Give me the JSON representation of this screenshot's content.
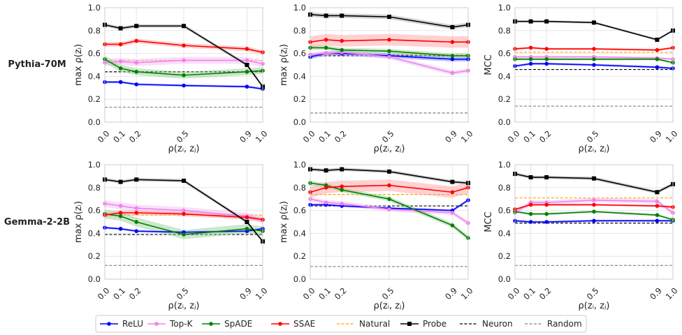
{
  "figure": {
    "row_labels": [
      "Pythia-70M",
      "Gemma-2-2B"
    ],
    "xlabel": "ρ(zᵢ, zⱼ)"
  },
  "legend": [
    {
      "name": "ReLU",
      "color": "#0000ff",
      "style": "solid-dot"
    },
    {
      "name": "Top-K",
      "color": "#ee82ee",
      "style": "solid-dot"
    },
    {
      "name": "SpADE",
      "color": "#008000",
      "style": "solid-dot"
    },
    {
      "name": "SSAE",
      "color": "#ff0000",
      "style": "solid-dot"
    },
    {
      "name": "Natural",
      "color": "#ffa500",
      "style": "dashed"
    },
    {
      "name": "Probe",
      "color": "#000000",
      "style": "solid-square"
    },
    {
      "name": "Neuron",
      "color": "#000000",
      "style": "dashed"
    },
    {
      "name": "Random",
      "color": "#808080",
      "style": "dashed"
    }
  ],
  "chart_data": [
    {
      "type": "line",
      "model": "Pythia-70M",
      "ylabel": "max ρ(zᵢ)",
      "x": [
        0.0,
        0.1,
        0.2,
        0.5,
        0.9,
        1.0
      ],
      "ylim": [
        0.0,
        1.0
      ],
      "xticks": [
        "0.0",
        "0.1",
        "0.2",
        "0.5",
        "0.9",
        "1.0"
      ],
      "yticks": [
        "0.0",
        "0.2",
        "0.4",
        "0.6",
        "0.8",
        "1.0"
      ],
      "series": [
        {
          "name": "ReLU",
          "values": [
            0.35,
            0.35,
            0.33,
            0.32,
            0.31,
            0.29
          ],
          "band": 0.01
        },
        {
          "name": "Top-K",
          "values": [
            0.52,
            0.53,
            0.52,
            0.54,
            0.54,
            0.51
          ],
          "band": 0.03
        },
        {
          "name": "SpADE",
          "values": [
            0.55,
            0.47,
            0.44,
            0.41,
            0.44,
            0.45
          ],
          "band": 0.03
        },
        {
          "name": "SSAE",
          "values": [
            0.68,
            0.68,
            0.71,
            0.67,
            0.64,
            0.61
          ],
          "band": 0.02
        },
        {
          "name": "Probe",
          "values": [
            0.85,
            0.82,
            0.84,
            0.84,
            0.5,
            0.31
          ],
          "band": 0.015
        }
      ],
      "hlines": [
        {
          "name": "Natural",
          "value": 0.54
        },
        {
          "name": "Neuron",
          "value": 0.44
        },
        {
          "name": "Random",
          "value": 0.13
        }
      ]
    },
    {
      "type": "line",
      "model": "Pythia-70M",
      "ylabel": "max ρ(zⱼ)",
      "x": [
        0.0,
        0.1,
        0.2,
        0.5,
        0.9,
        1.0
      ],
      "ylim": [
        0.0,
        1.0
      ],
      "xticks": [
        "0.0",
        "0.1",
        "0.2",
        "0.5",
        "0.9",
        "1.0"
      ],
      "yticks": [
        "0.0",
        "0.2",
        "0.4",
        "0.6",
        "0.8",
        "1.0"
      ],
      "series": [
        {
          "name": "ReLU",
          "values": [
            0.57,
            0.6,
            0.6,
            0.58,
            0.55,
            0.55
          ],
          "band": 0.02
        },
        {
          "name": "Top-K",
          "values": [
            0.59,
            0.6,
            0.61,
            0.57,
            0.43,
            0.45
          ],
          "band": 0.02
        },
        {
          "name": "SpADE",
          "values": [
            0.65,
            0.65,
            0.63,
            0.62,
            0.58,
            0.58
          ],
          "band": 0.02
        },
        {
          "name": "SSAE",
          "values": [
            0.7,
            0.72,
            0.71,
            0.72,
            0.7,
            0.7
          ],
          "band": 0.05
        },
        {
          "name": "Probe",
          "values": [
            0.94,
            0.93,
            0.93,
            0.92,
            0.83,
            0.85
          ],
          "band": 0.02
        }
      ],
      "hlines": [
        {
          "name": "Natural",
          "value": 0.59
        },
        {
          "name": "Neuron",
          "value": 0.58
        },
        {
          "name": "Random",
          "value": 0.08
        }
      ]
    },
    {
      "type": "line",
      "model": "Pythia-70M",
      "ylabel": "MCC",
      "x": [
        0.0,
        0.1,
        0.2,
        0.5,
        0.9,
        1.0
      ],
      "ylim": [
        0.0,
        1.0
      ],
      "xticks": [
        "0.0",
        "0.1",
        "0.2",
        "0.5",
        "0.9",
        "1.0"
      ],
      "yticks": [
        "0.0",
        "0.2",
        "0.4",
        "0.6",
        "0.8",
        "1.0"
      ],
      "series": [
        {
          "name": "ReLU",
          "values": [
            0.49,
            0.51,
            0.51,
            0.5,
            0.48,
            0.47
          ],
          "band": 0.01
        },
        {
          "name": "Top-K",
          "values": [
            0.57,
            0.57,
            0.57,
            0.57,
            0.56,
            0.55
          ],
          "band": 0.01
        },
        {
          "name": "SpADE",
          "values": [
            0.55,
            0.55,
            0.55,
            0.55,
            0.55,
            0.52
          ],
          "band": 0.01
        },
        {
          "name": "SSAE",
          "values": [
            0.64,
            0.65,
            0.64,
            0.64,
            0.63,
            0.65
          ],
          "band": 0.01
        },
        {
          "name": "Probe",
          "values": [
            0.88,
            0.88,
            0.88,
            0.87,
            0.72,
            0.8
          ],
          "band": 0.01
        }
      ],
      "hlines": [
        {
          "name": "Natural",
          "value": 0.61
        },
        {
          "name": "Neuron",
          "value": 0.46
        },
        {
          "name": "Random",
          "value": 0.14
        }
      ]
    },
    {
      "type": "line",
      "model": "Gemma-2-2B",
      "ylabel": "max ρ(zᵢ)",
      "x": [
        0.0,
        0.1,
        0.2,
        0.5,
        0.9,
        1.0
      ],
      "ylim": [
        0.0,
        1.0
      ],
      "xticks": [
        "0.0",
        "0.1",
        "0.2",
        "0.5",
        "0.9",
        "1.0"
      ],
      "yticks": [
        "0.0",
        "0.2",
        "0.4",
        "0.6",
        "0.8",
        "1.0"
      ],
      "series": [
        {
          "name": "ReLU",
          "values": [
            0.45,
            0.44,
            0.42,
            0.41,
            0.42,
            0.44
          ],
          "band": 0.01
        },
        {
          "name": "Top-K",
          "values": [
            0.66,
            0.64,
            0.62,
            0.6,
            0.55,
            0.52
          ],
          "band": 0.03
        },
        {
          "name": "SpADE",
          "values": [
            0.57,
            0.55,
            0.5,
            0.39,
            0.44,
            0.42
          ],
          "band": 0.04
        },
        {
          "name": "SSAE",
          "values": [
            0.56,
            0.58,
            0.58,
            0.57,
            0.54,
            0.52
          ],
          "band": 0.02
        },
        {
          "name": "Probe",
          "values": [
            0.87,
            0.85,
            0.87,
            0.86,
            0.5,
            0.33
          ],
          "band": 0.015
        }
      ],
      "hlines": [
        {
          "name": "Natural",
          "value": 0.56
        },
        {
          "name": "Neuron",
          "value": 0.39
        },
        {
          "name": "Random",
          "value": 0.12
        }
      ]
    },
    {
      "type": "line",
      "model": "Gemma-2-2B",
      "ylabel": "max ρ(zⱼ)",
      "x": [
        0.0,
        0.1,
        0.2,
        0.5,
        0.9,
        1.0
      ],
      "ylim": [
        0.0,
        1.0
      ],
      "xticks": [
        "0.0",
        "0.1",
        "0.2",
        "0.5",
        "0.9",
        "1.0"
      ],
      "yticks": [
        "0.0",
        "0.2",
        "0.4",
        "0.6",
        "0.8",
        "1.0"
      ],
      "series": [
        {
          "name": "ReLU",
          "values": [
            0.65,
            0.65,
            0.64,
            0.62,
            0.6,
            0.69
          ],
          "band": 0.01
        },
        {
          "name": "Top-K",
          "values": [
            0.7,
            0.67,
            0.66,
            0.61,
            0.58,
            0.49
          ],
          "band": 0.02
        },
        {
          "name": "SpADE",
          "values": [
            0.84,
            0.82,
            0.78,
            0.7,
            0.47,
            0.36
          ],
          "band": 0.02
        },
        {
          "name": "SSAE",
          "values": [
            0.76,
            0.8,
            0.81,
            0.82,
            0.76,
            0.8
          ],
          "band": 0.05
        },
        {
          "name": "Probe",
          "values": [
            0.96,
            0.95,
            0.96,
            0.94,
            0.85,
            0.84
          ],
          "band": 0.015
        }
      ],
      "hlines": [
        {
          "name": "Natural",
          "value": 0.74
        },
        {
          "name": "Neuron",
          "value": 0.64
        },
        {
          "name": "Random",
          "value": 0.11
        }
      ]
    },
    {
      "type": "line",
      "model": "Gemma-2-2B",
      "ylabel": "MCC",
      "x": [
        0.0,
        0.1,
        0.2,
        0.5,
        0.9,
        1.0
      ],
      "ylim": [
        0.0,
        1.0
      ],
      "xticks": [
        "0.0",
        "0.1",
        "0.2",
        "0.5",
        "0.9",
        "1.0"
      ],
      "yticks": [
        "0.0",
        "0.2",
        "0.4",
        "0.6",
        "0.8",
        "1.0"
      ],
      "series": [
        {
          "name": "ReLU",
          "values": [
            0.51,
            0.5,
            0.5,
            0.51,
            0.51,
            0.51
          ],
          "band": 0.01
        },
        {
          "name": "Top-K",
          "values": [
            0.58,
            0.67,
            0.67,
            0.69,
            0.68,
            0.58
          ],
          "band": 0.02
        },
        {
          "name": "SpADE",
          "values": [
            0.59,
            0.57,
            0.57,
            0.59,
            0.56,
            0.52
          ],
          "band": 0.01
        },
        {
          "name": "SSAE",
          "values": [
            0.61,
            0.65,
            0.65,
            0.65,
            0.64,
            0.63
          ],
          "band": 0.01
        },
        {
          "name": "Probe",
          "values": [
            0.92,
            0.89,
            0.89,
            0.88,
            0.76,
            0.83
          ],
          "band": 0.015
        }
      ],
      "hlines": [
        {
          "name": "Natural",
          "value": 0.71
        },
        {
          "name": "Neuron",
          "value": 0.49
        },
        {
          "name": "Random",
          "value": 0.12
        }
      ]
    }
  ]
}
